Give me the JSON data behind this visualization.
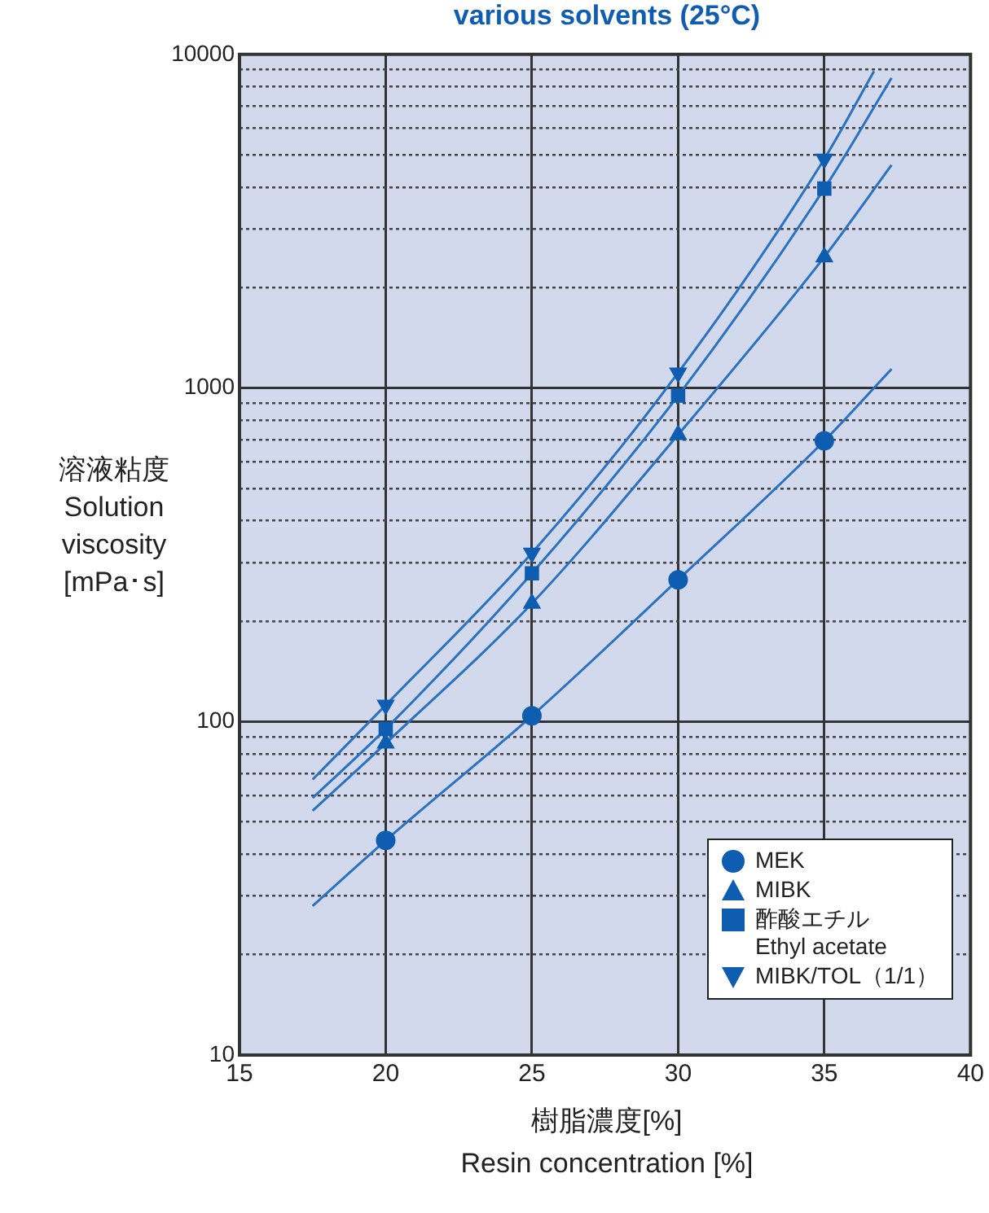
{
  "chart_data": {
    "type": "line",
    "title": "various solvents (25°C)",
    "xlabel": "樹脂濃度[%]\nResin concentration [%]",
    "ylabel": "溶液粘度\nSolution\nviscosity\n[mPa･s]",
    "log": "y",
    "grid": true,
    "legend": "bottom right",
    "xlim": [
      15,
      40
    ],
    "xticks": [
      15,
      20,
      25,
      30,
      35,
      40
    ],
    "ylim": [
      10,
      10000
    ],
    "yticks": [
      10,
      {
        "value": 20,
        "label": null
      },
      {
        "value": 30,
        "label": null
      },
      {
        "value": 40,
        "label": null
      },
      {
        "value": 50,
        "label": null
      },
      {
        "value": 60,
        "label": null
      },
      {
        "value": 70,
        "label": null
      },
      {
        "value": 80,
        "label": null
      },
      {
        "value": 90,
        "label": null
      },
      100,
      {
        "value": 200,
        "label": null
      },
      {
        "value": 300,
        "label": null
      },
      {
        "value": 400,
        "label": null
      },
      {
        "value": 500,
        "label": null
      },
      {
        "value": 600,
        "label": null
      },
      {
        "value": 700,
        "label": null
      },
      {
        "value": 800,
        "label": null
      },
      {
        "value": 900,
        "label": null
      },
      1000,
      {
        "value": 2000,
        "label": null
      },
      {
        "value": 3000,
        "label": null
      },
      {
        "value": 4000,
        "label": null
      },
      {
        "value": 5000,
        "label": null
      },
      {
        "value": 6000,
        "label": null
      },
      {
        "value": 7000,
        "label": null
      },
      {
        "value": 8000,
        "label": null
      },
      {
        "value": 9000,
        "label": null
      },
      10000
    ],
    "series": [
      {
        "name": "MEK",
        "type": "scatter",
        "marker": "circle",
        "color": "#0f5db0",
        "x": [
          20,
          25,
          30,
          35
        ],
        "values": [
          44,
          104,
          266,
          694
        ]
      },
      {
        "name": "MIBK",
        "type": "scatter",
        "marker": "triangle",
        "color": "#0f5db0",
        "x": [
          20,
          25,
          30,
          35
        ],
        "values": [
          86,
          226,
          724,
          2470
        ]
      },
      {
        "name": "酢酸エチル\nEthyl acetate",
        "type": "scatter",
        "marker": "square",
        "color": "#0f5db0",
        "x": [
          20,
          25,
          30,
          35
        ],
        "values": [
          95,
          278,
          948,
          3960
        ]
      },
      {
        "name": "MIBK/TOL（1/1）",
        "type": "scatter",
        "marker": "triangle-down",
        "color": "#0f5db0",
        "x": [
          20,
          25,
          30,
          35
        ],
        "values": [
          112,
          320,
          1110,
          4860
        ]
      },
      {
        "color": "#2a72c0",
        "x": [
          17.5,
          20,
          25,
          30,
          35,
          37.3
        ],
        "values": [
          28,
          44,
          104,
          266,
          694,
          1140
        ]
      },
      {
        "color": "#2a72c0",
        "x": [
          17.5,
          20,
          25,
          30,
          35,
          37.3
        ],
        "values": [
          54,
          86,
          226,
          724,
          2470,
          4660
        ]
      },
      {
        "color": "#2a72c0",
        "x": [
          17.5,
          20,
          25,
          30,
          35,
          37.3
        ],
        "values": [
          59,
          95,
          278,
          948,
          3960,
          8500
        ]
      },
      {
        "color": "#2a72c0",
        "x": [
          17.5,
          20,
          25,
          30,
          35,
          36.7
        ],
        "values": [
          67,
          112,
          320,
          1110,
          4860,
          8900
        ]
      }
    ]
  }
}
